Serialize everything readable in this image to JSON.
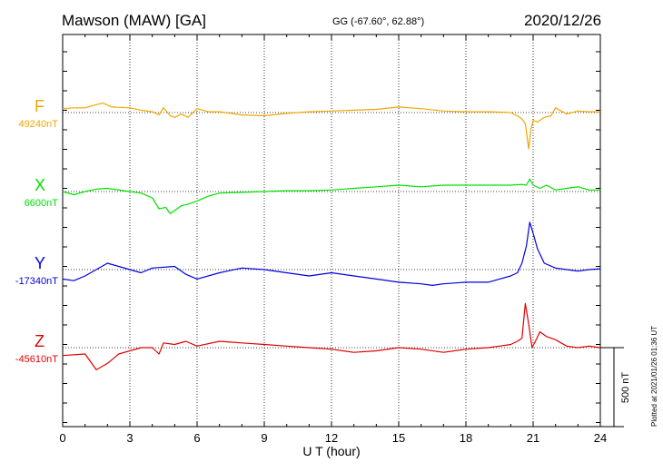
{
  "header": {
    "station": "Mawson (MAW)  [GA]",
    "coords": "GG (-67.60°,  62.88°)",
    "date": "2020/12/26"
  },
  "plotted_note": "Plotted at 2021/01/26 01:36 UT",
  "scale_label": "500 nT",
  "chart_data": {
    "type": "line",
    "xlabel": "U T (hour)",
    "xlim": [
      0,
      24
    ],
    "xticks": [
      "0",
      "3",
      "6",
      "9",
      "12",
      "15",
      "18",
      "21",
      "24"
    ],
    "y_units": "nT",
    "scale_bar_nT": 500,
    "grid": "dotted vertical every 3 h; dotted baseline per component",
    "series": [
      {
        "name": "F",
        "baseline_label": "49240nT",
        "color": "#f0a800",
        "x": [
          0,
          0.5,
          1,
          1.5,
          1.8,
          2.2,
          3,
          3.5,
          4,
          4.3,
          4.5,
          4.8,
          5,
          5.3,
          5.6,
          6,
          6.5,
          7,
          8,
          9,
          10,
          11,
          12,
          13,
          14,
          15,
          16,
          17,
          18,
          19,
          20,
          20.3,
          20.5,
          20.65,
          20.8,
          20.9,
          21,
          21.2,
          21.5,
          21.8,
          22,
          22.5,
          23,
          23.5,
          24
        ],
        "values": [
          25,
          30,
          30,
          50,
          60,
          35,
          30,
          15,
          5,
          -15,
          30,
          -20,
          -30,
          -10,
          -30,
          25,
          5,
          5,
          -15,
          -20,
          -5,
          5,
          10,
          15,
          20,
          35,
          25,
          10,
          5,
          5,
          0,
          -20,
          -40,
          -70,
          -230,
          -110,
          -50,
          -60,
          -30,
          -20,
          30,
          -10,
          10,
          5,
          5
        ]
      },
      {
        "name": "X",
        "baseline_label": "6600nT",
        "color": "#00e000",
        "x": [
          0,
          0.5,
          1,
          1.5,
          2,
          3,
          3.5,
          4,
          4.3,
          4.6,
          4.8,
          5,
          5.3,
          5.6,
          6,
          6.5,
          7,
          8,
          9,
          10,
          11,
          12,
          13,
          14,
          15,
          16,
          17,
          18,
          19,
          20,
          20.5,
          20.7,
          20.85,
          21,
          21.3,
          21.6,
          22,
          22.5,
          23,
          23.5,
          24
        ],
        "values": [
          0,
          -20,
          0,
          15,
          20,
          0,
          -10,
          -40,
          -110,
          -100,
          -140,
          -120,
          -90,
          -80,
          -60,
          -30,
          -10,
          -5,
          0,
          5,
          5,
          10,
          20,
          30,
          40,
          30,
          40,
          40,
          40,
          40,
          45,
          40,
          80,
          40,
          20,
          40,
          10,
          20,
          30,
          10,
          10
        ]
      },
      {
        "name": "Y",
        "baseline_label": "-17340nT",
        "color": "#0000e0",
        "x": [
          0,
          0.5,
          1,
          1.5,
          2,
          2.5,
          3,
          3.5,
          4,
          5,
          5.5,
          6,
          7,
          8,
          9,
          10,
          11,
          12,
          13,
          14,
          15,
          16,
          16.5,
          17,
          18,
          19,
          19.5,
          20,
          20.3,
          20.5,
          20.7,
          20.85,
          21,
          21.2,
          21.5,
          22,
          22.5,
          23,
          23.5,
          24
        ],
        "values": [
          -60,
          -70,
          -40,
          0,
          40,
          20,
          0,
          -20,
          10,
          20,
          -30,
          -60,
          -20,
          10,
          0,
          -20,
          -40,
          -20,
          -40,
          -60,
          -80,
          -90,
          -100,
          -90,
          -80,
          -80,
          -60,
          -40,
          -20,
          40,
          150,
          300,
          230,
          130,
          40,
          10,
          0,
          -10,
          0,
          5
        ]
      },
      {
        "name": "Z",
        "baseline_label": "-45610nT",
        "color": "#e00000",
        "x": [
          0,
          1,
          1.5,
          2,
          2.5,
          3,
          3.5,
          4,
          4.3,
          4.5,
          5,
          5.5,
          6,
          7,
          8,
          9,
          10,
          11,
          12,
          13,
          14,
          15,
          16,
          17,
          18,
          19,
          19.5,
          20,
          20.3,
          20.5,
          20.65,
          20.8,
          20.95,
          21.1,
          21.3,
          21.6,
          22,
          22.5,
          23,
          23.5,
          24
        ],
        "values": [
          -50,
          -40,
          -140,
          -100,
          -40,
          -20,
          0,
          0,
          -40,
          30,
          20,
          40,
          10,
          40,
          30,
          20,
          10,
          0,
          -10,
          -30,
          -20,
          0,
          -10,
          -30,
          -10,
          0,
          10,
          20,
          40,
          60,
          280,
          150,
          0,
          40,
          100,
          70,
          50,
          10,
          0,
          10,
          0
        ]
      }
    ]
  }
}
